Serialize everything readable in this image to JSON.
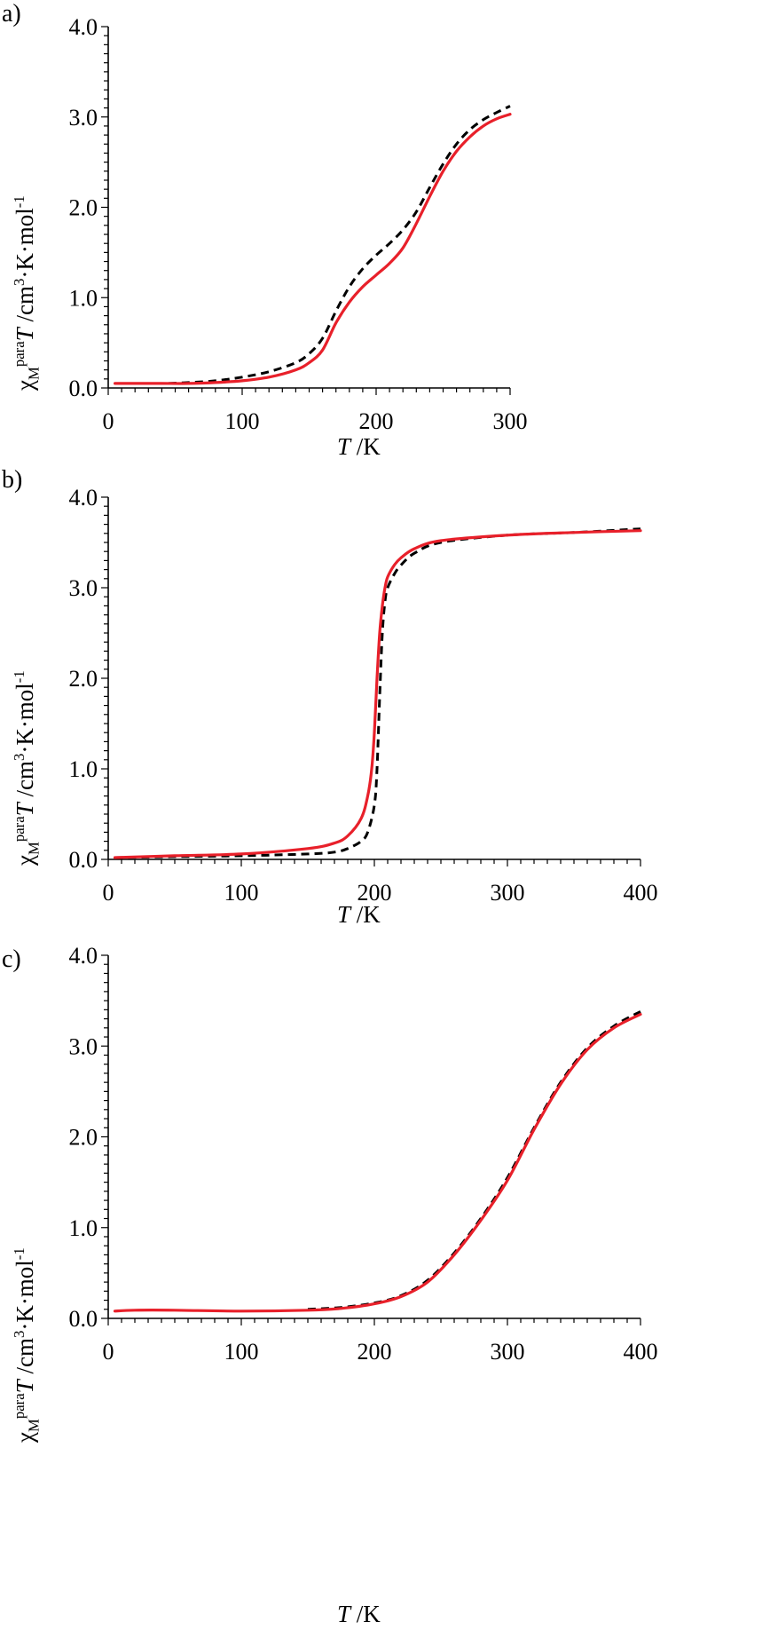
{
  "chart_data": [
    {
      "type": "line",
      "panel_label": "a)",
      "xlabel_italic": "T",
      "xlabel_rest": " /K",
      "ylabel": {
        "chi": "χ",
        "sub": "M",
        "sup": "para",
        "T": "T",
        "unit_pre": " /cm",
        "unit_sup1": "3",
        "unit_mid": "·K·mol",
        "unit_sup2": "-1"
      },
      "xlim": [
        0,
        300
      ],
      "ylim": [
        0,
        4.0
      ],
      "xticks": [
        0,
        100,
        200,
        300
      ],
      "xtick_labels": [
        "0",
        "100",
        "200",
        "300"
      ],
      "yticks": [
        0,
        1.0,
        2.0,
        3.0,
        4.0
      ],
      "ytick_labels": [
        "0.0",
        "1.0",
        "2.0",
        "3.0",
        "4.0"
      ],
      "series": [
        {
          "style": "dashed",
          "color": "#000000",
          "x": [
            45,
            60,
            80,
            100,
            120,
            140,
            150,
            160,
            170,
            180,
            190,
            200,
            210,
            220,
            230,
            240,
            250,
            260,
            270,
            280,
            290,
            300
          ],
          "y": [
            0.05,
            0.06,
            0.08,
            0.12,
            0.18,
            0.28,
            0.38,
            0.55,
            0.85,
            1.12,
            1.32,
            1.47,
            1.6,
            1.75,
            1.95,
            2.22,
            2.48,
            2.7,
            2.86,
            2.97,
            3.05,
            3.12
          ]
        },
        {
          "style": "solid",
          "color": "#e8202a",
          "x": [
            5,
            20,
            40,
            60,
            80,
            100,
            120,
            140,
            150,
            160,
            170,
            180,
            190,
            200,
            210,
            220,
            230,
            240,
            250,
            260,
            270,
            280,
            290,
            300
          ],
          "y": [
            0.05,
            0.05,
            0.05,
            0.05,
            0.06,
            0.08,
            0.12,
            0.2,
            0.28,
            0.42,
            0.72,
            0.95,
            1.12,
            1.25,
            1.38,
            1.55,
            1.82,
            2.12,
            2.4,
            2.62,
            2.78,
            2.9,
            2.98,
            3.03
          ]
        }
      ]
    },
    {
      "type": "line",
      "panel_label": "b)",
      "xlabel_italic": "T",
      "xlabel_rest": " /K",
      "ylabel": {
        "chi": "χ",
        "sub": "M",
        "sup": "para",
        "T": "T",
        "unit_pre": " /cm",
        "unit_sup1": "3",
        "unit_mid": "·K·mol",
        "unit_sup2": "-1"
      },
      "xlim": [
        0,
        400
      ],
      "ylim": [
        0,
        4.0
      ],
      "xticks": [
        0,
        100,
        200,
        300,
        400
      ],
      "xtick_labels": [
        "0",
        "100",
        "200",
        "300",
        "400"
      ],
      "yticks": [
        0,
        1.0,
        2.0,
        3.0,
        4.0
      ],
      "ytick_labels": [
        "0.0",
        "1.0",
        "2.0",
        "3.0",
        "4.0"
      ],
      "series": [
        {
          "style": "dashed",
          "color": "#000000",
          "x": [
            5,
            50,
            100,
            150,
            170,
            180,
            190,
            195,
            200,
            202,
            204,
            206,
            208,
            210,
            215,
            220,
            230,
            250,
            300,
            350,
            400
          ],
          "y": [
            0.02,
            0.03,
            0.04,
            0.06,
            0.08,
            0.12,
            0.2,
            0.3,
            0.6,
            1.0,
            1.8,
            2.5,
            2.85,
            3.0,
            3.15,
            3.25,
            3.38,
            3.5,
            3.58,
            3.61,
            3.65
          ]
        },
        {
          "style": "solid",
          "color": "#e8202a",
          "x": [
            5,
            50,
            100,
            150,
            170,
            180,
            190,
            195,
            198,
            200,
            202,
            204,
            206,
            208,
            210,
            215,
            220,
            230,
            250,
            300,
            350,
            400
          ],
          "y": [
            0.02,
            0.04,
            0.06,
            0.12,
            0.18,
            0.26,
            0.45,
            0.7,
            1.0,
            1.4,
            2.0,
            2.5,
            2.8,
            3.0,
            3.12,
            3.25,
            3.33,
            3.43,
            3.52,
            3.58,
            3.61,
            3.63
          ]
        }
      ]
    },
    {
      "type": "line",
      "panel_label": "c)",
      "xlabel_italic": "T",
      "xlabel_rest": " /K",
      "ylabel": {
        "chi": "χ",
        "sub": "M",
        "sup": "para",
        "T": "T",
        "unit_pre": " /cm",
        "unit_sup1": "3",
        "unit_mid": "·K·mol",
        "unit_sup2": "-1"
      },
      "xlim": [
        0,
        400
      ],
      "ylim": [
        0,
        4.0
      ],
      "xticks": [
        0,
        100,
        200,
        300,
        400
      ],
      "xtick_labels": [
        "0",
        "100",
        "200",
        "300",
        "400"
      ],
      "yticks": [
        0,
        1.0,
        2.0,
        3.0,
        4.0
      ],
      "ytick_labels": [
        "0.0",
        "1.0",
        "2.0",
        "3.0",
        "4.0"
      ],
      "series": [
        {
          "style": "dashed",
          "color": "#000000",
          "x": [
            150,
            175,
            200,
            220,
            240,
            260,
            280,
            300,
            320,
            340,
            360,
            380,
            400
          ],
          "y": [
            0.1,
            0.12,
            0.17,
            0.25,
            0.42,
            0.72,
            1.1,
            1.55,
            2.1,
            2.6,
            2.98,
            3.22,
            3.38
          ]
        },
        {
          "style": "solid",
          "color": "#e8202a",
          "x": [
            5,
            20,
            50,
            100,
            150,
            175,
            200,
            220,
            240,
            260,
            280,
            300,
            320,
            340,
            360,
            380,
            400
          ],
          "y": [
            0.08,
            0.09,
            0.09,
            0.08,
            0.09,
            0.11,
            0.16,
            0.24,
            0.4,
            0.7,
            1.08,
            1.52,
            2.08,
            2.58,
            2.96,
            3.2,
            3.35
          ]
        }
      ]
    }
  ]
}
